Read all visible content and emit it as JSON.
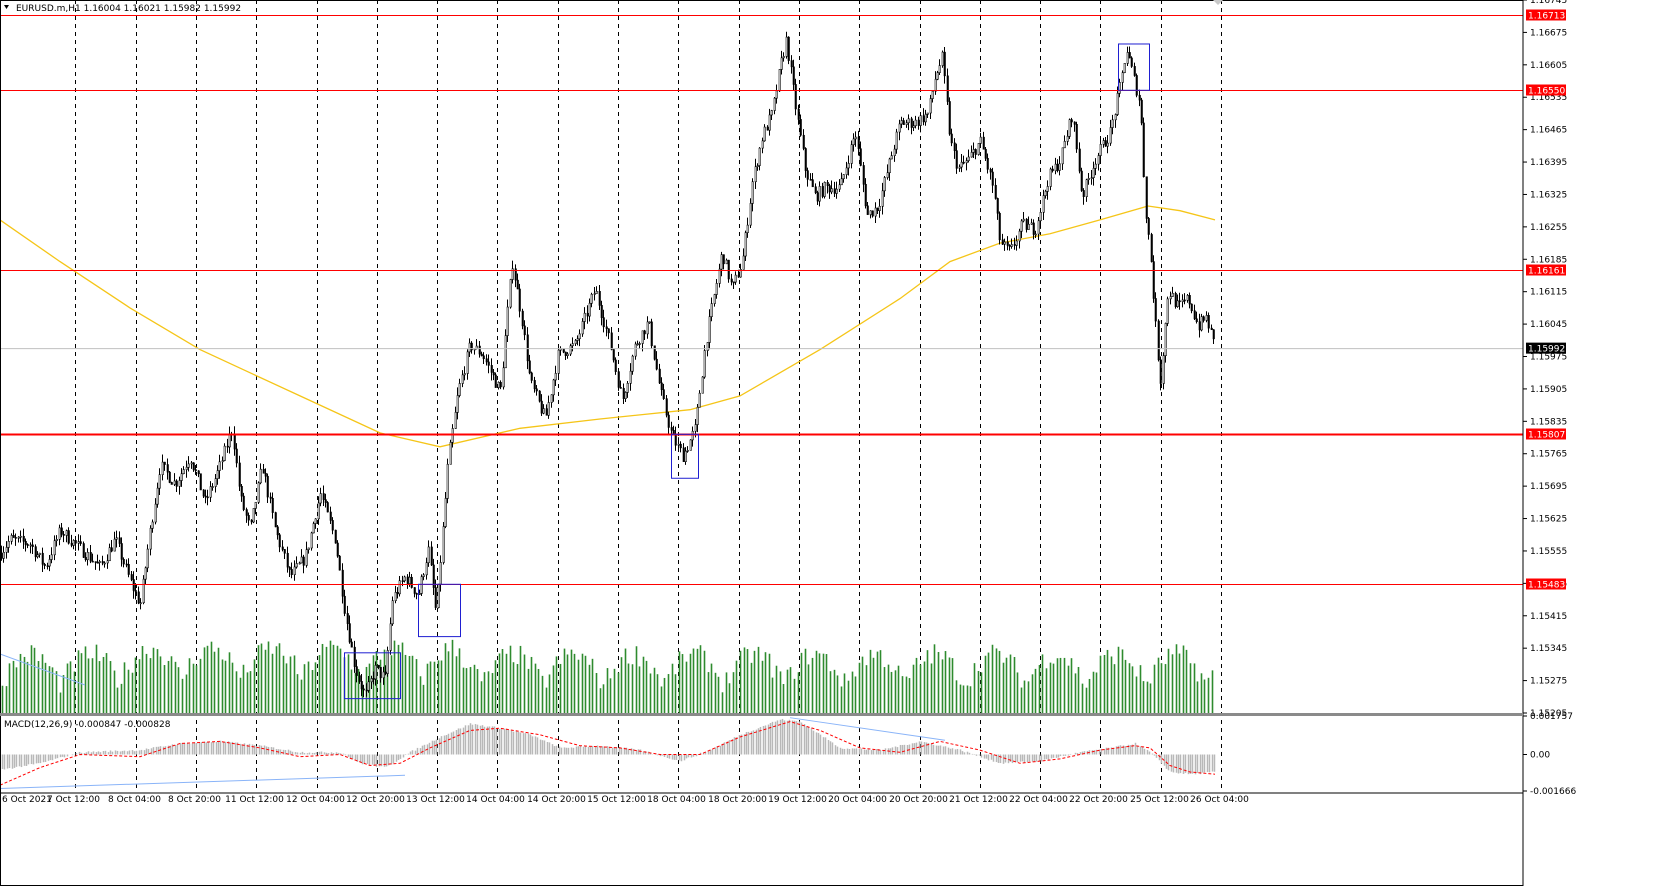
{
  "header": {
    "symbol_info": "EURUSD.m,H1  1.16004 1.16021 1.15982 1.15992",
    "macd_info": "MACD(12,26,9) -0.000847 -0.000828"
  },
  "colors": {
    "background": "#ffffff",
    "candle": "#000000",
    "volume": "#2e8b2e",
    "sma": "#f5c518",
    "level": "#ff0000",
    "box": "#1f1fd1",
    "macd_hist": "#b8b8b8",
    "macd_signal": "#ff0000",
    "trendline": "#8ab4f8",
    "bid_line": "#c0c0c0"
  },
  "chart_data": [
    {
      "type": "candlestick",
      "title": "EURUSD.m,H1",
      "ylim": [
        1.15205,
        1.16745
      ],
      "y_ticks": [
        "1.16745",
        "1.16675",
        "1.16605",
        "1.16535",
        "1.16465",
        "1.16395",
        "1.16325",
        "1.16255",
        "1.16185",
        "1.16115",
        "1.16045",
        "1.15975",
        "1.15905",
        "1.15835",
        "1.15765",
        "1.15695",
        "1.15625",
        "1.15555",
        "1.15485",
        "1.15415",
        "1.15345",
        "1.15275",
        "1.15205"
      ],
      "x_ticks": [
        "6 Oct 2021",
        "7 Oct 12:00",
        "8 Oct 04:00",
        "8 Oct 20:00",
        "11 Oct 12:00",
        "12 Oct 04:00",
        "12 Oct 20:00",
        "13 Oct 12:00",
        "14 Oct 04:00",
        "14 Oct 20:00",
        "15 Oct 12:00",
        "18 Oct 04:00",
        "18 Oct 20:00",
        "19 Oct 12:00",
        "20 Oct 04:00",
        "20 Oct 20:00",
        "21 Oct 12:00",
        "22 Oct 04:00",
        "22 Oct 20:00",
        "25 Oct 12:00",
        "26 Oct 04:00"
      ],
      "last_price": "1.15992",
      "levels": [
        {
          "label": "1.16713",
          "value": 1.16713
        },
        {
          "label": "1.16550",
          "value": 1.1655
        },
        {
          "label": "1.16161",
          "value": 1.16161
        },
        {
          "label": "1.15807",
          "value": 1.15807
        },
        {
          "label": "1.15483",
          "value": 1.15483
        }
      ],
      "close_path": [
        [
          0,
          1.1555
        ],
        [
          10,
          1.1558
        ],
        [
          30,
          1.1557
        ],
        [
          45,
          1.1552
        ],
        [
          60,
          1.156
        ],
        [
          80,
          1.1556
        ],
        [
          100,
          1.1552
        ],
        [
          115,
          1.1558
        ],
        [
          130,
          1.1549
        ],
        [
          140,
          1.1544
        ],
        [
          150,
          1.156
        ],
        [
          160,
          1.1574
        ],
        [
          175,
          1.157
        ],
        [
          190,
          1.1576
        ],
        [
          205,
          1.1566
        ],
        [
          220,
          1.1574
        ],
        [
          232,
          1.1582
        ],
        [
          240,
          1.1567
        ],
        [
          250,
          1.156
        ],
        [
          262,
          1.1574
        ],
        [
          275,
          1.156
        ],
        [
          290,
          1.155
        ],
        [
          305,
          1.1554
        ],
        [
          320,
          1.1568
        ],
        [
          335,
          1.1558
        ],
        [
          345,
          1.1542
        ],
        [
          355,
          1.153
        ],
        [
          365,
          1.1524
        ],
        [
          375,
          1.153
        ],
        [
          385,
          1.1528
        ],
        [
          392,
          1.1545
        ],
        [
          405,
          1.155
        ],
        [
          418,
          1.1546
        ],
        [
          428,
          1.1556
        ],
        [
          436,
          1.1542
        ],
        [
          448,
          1.1575
        ],
        [
          458,
          1.159
        ],
        [
          470,
          1.16
        ],
        [
          482,
          1.1598
        ],
        [
          500,
          1.159
        ],
        [
          512,
          1.1618
        ],
        [
          522,
          1.1605
        ],
        [
          530,
          1.1592
        ],
        [
          545,
          1.1584
        ],
        [
          558,
          1.1598
        ],
        [
          575,
          1.16
        ],
        [
          595,
          1.1612
        ],
        [
          610,
          1.16
        ],
        [
          622,
          1.1588
        ],
        [
          635,
          1.16
        ],
        [
          648,
          1.1605
        ],
        [
          660,
          1.159
        ],
        [
          672,
          1.158
        ],
        [
          683,
          1.1576
        ],
        [
          695,
          1.1582
        ],
        [
          705,
          1.16
        ],
        [
          715,
          1.1612
        ],
        [
          722,
          1.162
        ],
        [
          732,
          1.1612
        ],
        [
          742,
          1.1618
        ],
        [
          752,
          1.1635
        ],
        [
          762,
          1.1645
        ],
        [
          772,
          1.165
        ],
        [
          780,
          1.166
        ],
        [
          786,
          1.1666
        ],
        [
          795,
          1.1652
        ],
        [
          805,
          1.1638
        ],
        [
          815,
          1.1632
        ],
        [
          825,
          1.1634
        ],
        [
          840,
          1.1634
        ],
        [
          855,
          1.1646
        ],
        [
          867,
          1.1628
        ],
        [
          878,
          1.163
        ],
        [
          890,
          1.164
        ],
        [
          900,
          1.1648
        ],
        [
          915,
          1.1648
        ],
        [
          928,
          1.165
        ],
        [
          935,
          1.1658
        ],
        [
          942,
          1.1662
        ],
        [
          950,
          1.1644
        ],
        [
          958,
          1.1638
        ],
        [
          968,
          1.164
        ],
        [
          980,
          1.1644
        ],
        [
          993,
          1.1634
        ],
        [
          1000,
          1.1622
        ],
        [
          1010,
          1.162
        ],
        [
          1022,
          1.1626
        ],
        [
          1035,
          1.1625
        ],
        [
          1048,
          1.1636
        ],
        [
          1060,
          1.164
        ],
        [
          1072,
          1.165
        ],
        [
          1082,
          1.1632
        ],
        [
          1095,
          1.164
        ],
        [
          1110,
          1.1646
        ],
        [
          1120,
          1.1656
        ],
        [
          1126,
          1.1664
        ],
        [
          1133,
          1.1658
        ],
        [
          1140,
          1.1652
        ],
        [
          1145,
          1.163
        ],
        [
          1150,
          1.162
        ],
        [
          1155,
          1.1605
        ],
        [
          1160,
          1.1592
        ],
        [
          1168,
          1.1612
        ],
        [
          1178,
          1.1608
        ],
        [
          1188,
          1.161
        ],
        [
          1198,
          1.1604
        ],
        [
          1206,
          1.1606
        ],
        [
          1215,
          1.1599
        ]
      ],
      "sma_path": [
        [
          0,
          1.1627
        ],
        [
          60,
          1.1618
        ],
        [
          130,
          1.1608
        ],
        [
          200,
          1.1599
        ],
        [
          300,
          1.1589
        ],
        [
          380,
          1.1581
        ],
        [
          440,
          1.1578
        ],
        [
          520,
          1.1582
        ],
        [
          600,
          1.1584
        ],
        [
          690,
          1.1586
        ],
        [
          740,
          1.1589
        ],
        [
          820,
          1.1599
        ],
        [
          900,
          1.161
        ],
        [
          950,
          1.1618
        ],
        [
          1000,
          1.1622
        ],
        [
          1050,
          1.1624
        ],
        [
          1100,
          1.1627
        ],
        [
          1148,
          1.163
        ],
        [
          1180,
          1.1629
        ],
        [
          1215,
          1.1627
        ]
      ],
      "boxes": [
        {
          "x1": 344,
          "x2": 400,
          "y1": 1.15335,
          "y2": 1.15236
        },
        {
          "x1": 418,
          "x2": 460,
          "y1": 1.15483,
          "y2": 1.1537
        },
        {
          "x1": 671,
          "x2": 698,
          "y1": 1.15807,
          "y2": 1.15712
        },
        {
          "x1": 1118,
          "x2": 1149,
          "y1": 1.1665,
          "y2": 1.1655
        }
      ]
    },
    {
      "type": "macd",
      "title": "MACD(12,26,9)",
      "ylim": [
        -0.001666,
        0.001757
      ],
      "y_ticks": [
        "0.001757",
        "0.00",
        "-0.001666"
      ],
      "hist_path": [
        [
          0,
          -0.0007
        ],
        [
          40,
          -0.0004
        ],
        [
          80,
          0.0001
        ],
        [
          140,
          0.0002
        ],
        [
          180,
          0.0005
        ],
        [
          220,
          0.0006
        ],
        [
          260,
          0.0004
        ],
        [
          300,
          0.0001
        ],
        [
          340,
          0.0001
        ],
        [
          360,
          -0.0004
        ],
        [
          385,
          -0.0006
        ],
        [
          410,
          0.0001
        ],
        [
          440,
          0.0008
        ],
        [
          470,
          0.0014
        ],
        [
          500,
          0.0012
        ],
        [
          530,
          0.0009
        ],
        [
          560,
          0.0003
        ],
        [
          600,
          0.0004
        ],
        [
          640,
          0.0002
        ],
        [
          680,
          -0.0003
        ],
        [
          710,
          0.0002
        ],
        [
          740,
          0.0009
        ],
        [
          780,
          0.0016
        ],
        [
          800,
          0.0015
        ],
        [
          840,
          0.0003
        ],
        [
          880,
          0.0002
        ],
        [
          920,
          0.0006
        ],
        [
          960,
          0.0002
        ],
        [
          1000,
          -0.0004
        ],
        [
          1040,
          -0.0003
        ],
        [
          1080,
          0.0001
        ],
        [
          1110,
          0.0003
        ],
        [
          1135,
          0.0005
        ],
        [
          1150,
          0.0001
        ],
        [
          1170,
          -0.0008
        ],
        [
          1190,
          -0.0009
        ],
        [
          1215,
          -0.0008
        ]
      ],
      "signal_path": [
        [
          0,
          -0.0014
        ],
        [
          40,
          -0.0006
        ],
        [
          80,
          0.0
        ],
        [
          140,
          -0.0001
        ],
        [
          180,
          0.0005
        ],
        [
          220,
          0.0006
        ],
        [
          260,
          0.0003
        ],
        [
          300,
          -0.0001
        ],
        [
          340,
          0.0
        ],
        [
          370,
          -0.0005
        ],
        [
          400,
          -0.0004
        ],
        [
          430,
          0.0003
        ],
        [
          470,
          0.0011
        ],
        [
          500,
          0.0012
        ],
        [
          540,
          0.0009
        ],
        [
          580,
          0.0004
        ],
        [
          620,
          0.0003
        ],
        [
          660,
          0.0
        ],
        [
          700,
          0.0
        ],
        [
          740,
          0.0008
        ],
        [
          790,
          0.0015
        ],
        [
          820,
          0.0011
        ],
        [
          860,
          0.0003
        ],
        [
          900,
          0.0001
        ],
        [
          940,
          0.0006
        ],
        [
          980,
          0.0002
        ],
        [
          1020,
          -0.0004
        ],
        [
          1060,
          -0.0002
        ],
        [
          1100,
          0.0002
        ],
        [
          1135,
          0.0004
        ],
        [
          1150,
          0.0003
        ],
        [
          1170,
          -0.0005
        ],
        [
          1190,
          -0.0008
        ],
        [
          1215,
          -0.0009
        ]
      ]
    }
  ]
}
